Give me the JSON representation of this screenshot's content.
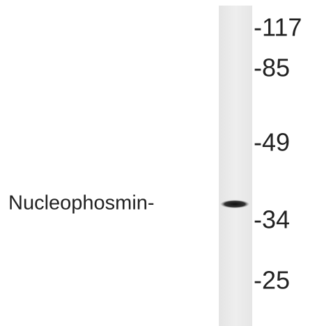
{
  "lane_label": "Nucleophosmin-",
  "markers": [
    "-117",
    "-85",
    "-49",
    "-34",
    "-25"
  ]
}
